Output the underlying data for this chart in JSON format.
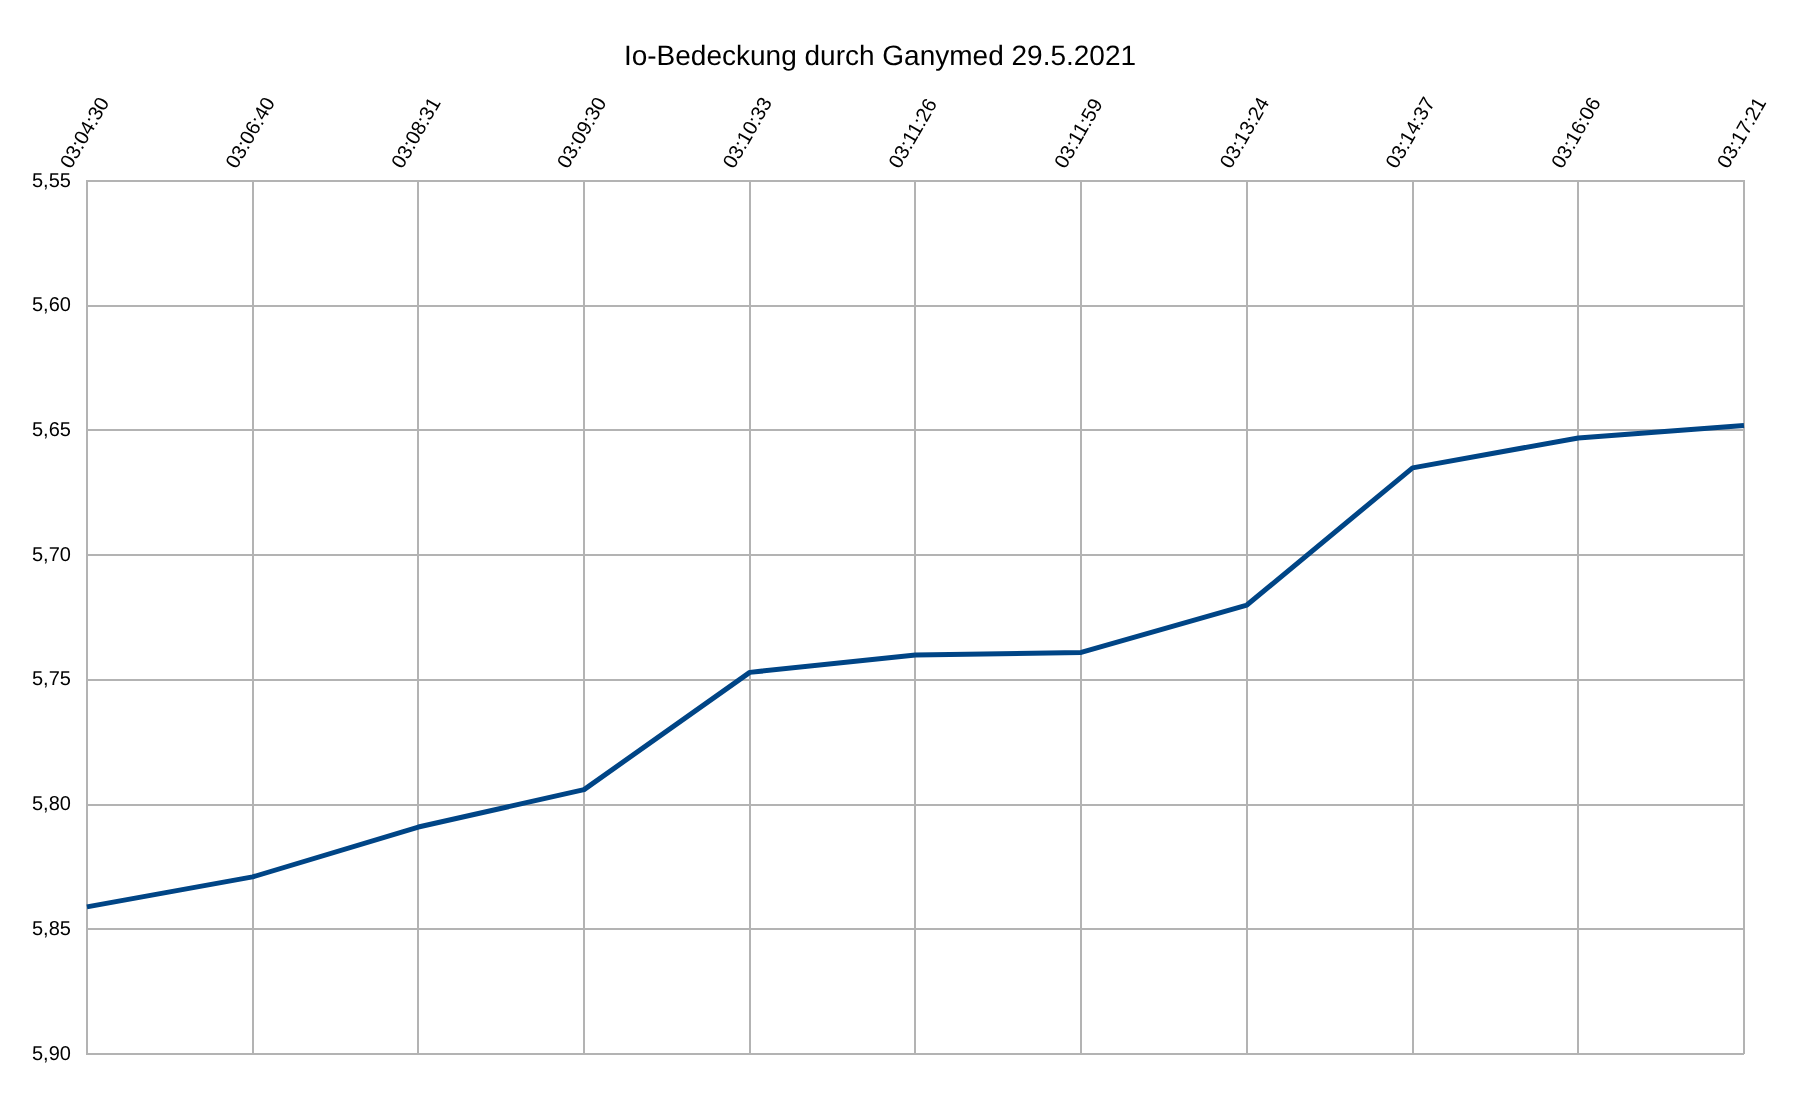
{
  "chart_data": {
    "type": "line",
    "title": "Io-Bedeckung durch Ganymed 29.5.2021",
    "categories": [
      "03:04:30",
      "03:06:40",
      "03:08:31",
      "03:09:30",
      "03:10:33",
      "03:11:26",
      "03:11:59",
      "03:13:24",
      "03:14:37",
      "03:16:06",
      "03:17:21"
    ],
    "series": [
      {
        "color": "#004586",
        "values": [
          5.841,
          5.829,
          5.809,
          5.794,
          5.747,
          5.74,
          5.739,
          5.72,
          5.665,
          5.653,
          5.648
        ]
      }
    ],
    "ylim": [
      5.9,
      5.55
    ],
    "yticks": [
      {
        "value": 5.55,
        "label": "5,55"
      },
      {
        "value": 5.6,
        "label": "5,60"
      },
      {
        "value": 5.65,
        "label": "5,65"
      },
      {
        "value": 5.7,
        "label": "5,70"
      },
      {
        "value": 5.75,
        "label": "5,75"
      },
      {
        "value": 5.8,
        "label": "5,80"
      },
      {
        "value": 5.85,
        "label": "5,85"
      },
      {
        "value": 5.9,
        "label": "5,90"
      }
    ],
    "grid": true,
    "legend": false,
    "marker": "none",
    "line_style": "solid"
  }
}
